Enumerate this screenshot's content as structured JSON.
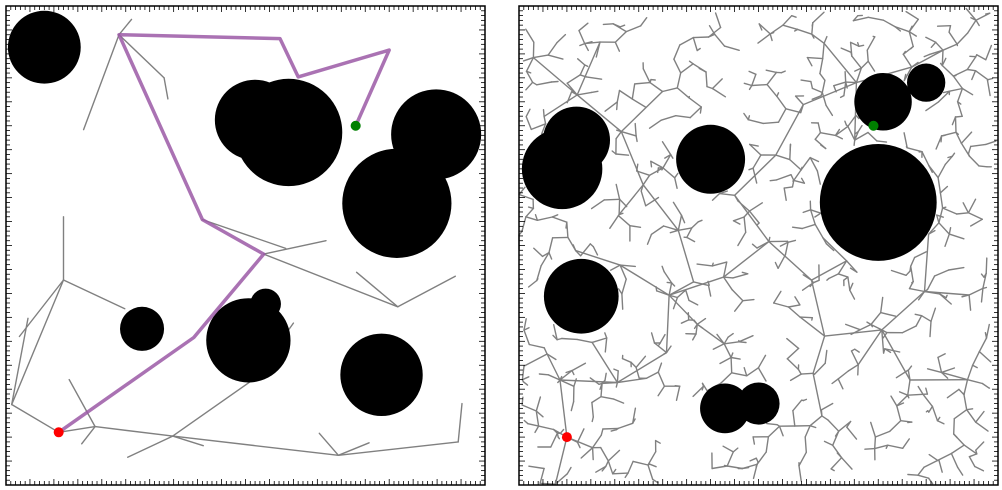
{
  "colors": {
    "background": "#ffffff",
    "frame": "#000000",
    "tree_edge": "#808080",
    "path": "#9b59a6",
    "obstacle": "#000000",
    "start": "#ff0000",
    "goal": "#008000"
  },
  "panels": [
    {
      "id": "left",
      "name": "sparse-tree-with-path",
      "start": [
        5.5,
        5.5
      ],
      "goal": [
        36.5,
        37.5
      ],
      "obstacles": [
        [
          4,
          45.7,
          3.8
        ],
        [
          26,
          38.1,
          4.2
        ],
        [
          29.5,
          36.8,
          5.6
        ],
        [
          44.9,
          36.6,
          4.7
        ],
        [
          40.8,
          29.4,
          5.7
        ],
        [
          14.2,
          16.3,
          2.3
        ],
        [
          27.1,
          18.9,
          1.6
        ],
        [
          25.3,
          15.1,
          4.4
        ],
        [
          39.2,
          11.5,
          4.3
        ]
      ],
      "tree_edges": [
        [
          [
            5.5,
            5.5
          ],
          [
            9.3,
            6.1
          ]
        ],
        [
          [
            9.3,
            6.1
          ],
          [
            17.4,
            5.1
          ]
        ],
        [
          [
            17.4,
            5.1
          ],
          [
            34.7,
            3.1
          ]
        ],
        [
          [
            34.7,
            3.1
          ],
          [
            47.2,
            4.5
          ]
        ],
        [
          [
            47.2,
            4.5
          ],
          [
            47.6,
            8.5
          ]
        ],
        [
          [
            34.7,
            3.1
          ],
          [
            32.7,
            5.4
          ]
        ],
        [
          [
            34.7,
            3.1
          ],
          [
            37.9,
            4.4
          ]
        ],
        [
          [
            17.4,
            5.1
          ],
          [
            20.6,
            4.1
          ]
        ],
        [
          [
            17.4,
            5.1
          ],
          [
            12.7,
            2.9
          ]
        ],
        [
          [
            9.3,
            6.1
          ],
          [
            7.9,
            4.3
          ]
        ],
        [
          [
            9.3,
            6.1
          ],
          [
            6.6,
            11.0
          ]
        ],
        [
          [
            5.5,
            5.5
          ],
          [
            0.6,
            8.4
          ]
        ],
        [
          [
            0.6,
            8.4
          ],
          [
            2.3,
            17.4
          ]
        ],
        [
          [
            0.6,
            8.4
          ],
          [
            6.0,
            21.4
          ]
        ],
        [
          [
            6.0,
            21.4
          ],
          [
            6.0,
            28.0
          ]
        ],
        [
          [
            6.0,
            21.4
          ],
          [
            1.4,
            15.5
          ]
        ],
        [
          [
            6.0,
            21.4
          ],
          [
            12.4,
            18.4
          ]
        ],
        [
          [
            17.4,
            5.1
          ],
          [
            25.8,
            11.0
          ]
        ],
        [
          [
            25.8,
            11.0
          ],
          [
            30.0,
            16.9
          ]
        ],
        [
          [
            26.9,
            24.1
          ],
          [
            33.4,
            25.5
          ]
        ],
        [
          [
            26.9,
            24.1
          ],
          [
            40.9,
            18.6
          ]
        ],
        [
          [
            40.9,
            18.6
          ],
          [
            36.6,
            22.2
          ]
        ],
        [
          [
            40.9,
            18.6
          ],
          [
            46.9,
            21.8
          ]
        ],
        [
          [
            11.8,
            47.0
          ],
          [
            8.1,
            37.1
          ]
        ],
        [
          [
            11.8,
            47.0
          ],
          [
            16.5,
            42.5
          ]
        ],
        [
          [
            16.5,
            42.5
          ],
          [
            16.9,
            40.3
          ]
        ],
        [
          [
            11.8,
            47.0
          ],
          [
            13.1,
            48.6
          ]
        ],
        [
          [
            20.5,
            27.7
          ],
          [
            29.2,
            24.7
          ]
        ]
      ],
      "path": [
        [
          5.5,
          5.5
        ],
        [
          19.6,
          15.4
        ],
        [
          26.9,
          24.1
        ],
        [
          20.5,
          27.7
        ],
        [
          11.8,
          47.0
        ],
        [
          28.6,
          46.6
        ],
        [
          30.5,
          42.6
        ],
        [
          40.0,
          45.4
        ],
        [
          36.5,
          37.5
        ]
      ]
    },
    {
      "id": "right",
      "name": "dense-tree",
      "start": [
        5.0,
        5.0
      ],
      "goal": [
        37.0,
        37.5
      ],
      "obstacles": [
        [
          6,
          36,
          3.5
        ],
        [
          4.5,
          33,
          4.2
        ],
        [
          20,
          34,
          3.6
        ],
        [
          6.5,
          19.7,
          3.9
        ],
        [
          38,
          40,
          3.0
        ],
        [
          42.5,
          42,
          2.0
        ],
        [
          37.5,
          29.5,
          6.1
        ],
        [
          21.5,
          8.0,
          2.6
        ],
        [
          25,
          8.5,
          2.2
        ]
      ],
      "tree_seed": 7,
      "tree_nodes": 900
    }
  ]
}
